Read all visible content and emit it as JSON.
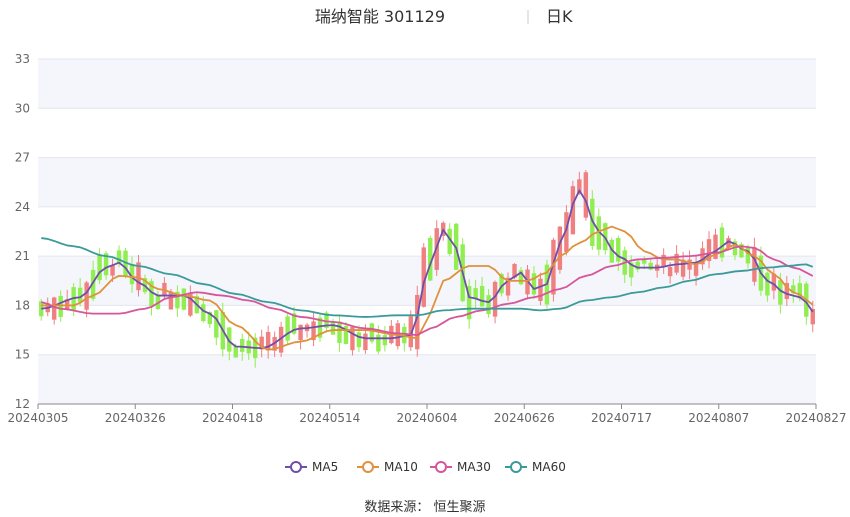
{
  "chart_data": {
    "type": "candlestick",
    "title": "瑞纳智能 301129",
    "subtitle": "日K",
    "source": "数据来源： 恒生聚源",
    "ylim": [
      12,
      33
    ],
    "yticks": [
      12,
      15,
      18,
      21,
      24,
      27,
      30,
      33
    ],
    "xticks": [
      "20240305",
      "20240326",
      "20240418",
      "20240514",
      "20240604",
      "20240626",
      "20240717",
      "20240807",
      "20240827"
    ],
    "colors": {
      "up": "#f08080",
      "down": "#90ee50",
      "MA5": "#6f4fa8",
      "MA10": "#e0913c",
      "MA30": "#d6559b",
      "MA60": "#3b9a9a"
    },
    "legend": [
      "MA5",
      "MA10",
      "MA30",
      "MA60"
    ],
    "n": 120,
    "ma_keypoints": {
      "MA5": [
        [
          0,
          17.8
        ],
        [
          6,
          18.5
        ],
        [
          10,
          20.3
        ],
        [
          12,
          20.6
        ],
        [
          15,
          19.4
        ],
        [
          18,
          18.6
        ],
        [
          22,
          18.6
        ],
        [
          26,
          17.5
        ],
        [
          30,
          15.5
        ],
        [
          34,
          15.4
        ],
        [
          40,
          16.6
        ],
        [
          45,
          16.8
        ],
        [
          50,
          16.0
        ],
        [
          54,
          16.0
        ],
        [
          57,
          16.2
        ],
        [
          60,
          20.5
        ],
        [
          62,
          22.6
        ],
        [
          64,
          21.5
        ],
        [
          66,
          18.5
        ],
        [
          69,
          18.2
        ],
        [
          72,
          19.5
        ],
        [
          74,
          20.0
        ],
        [
          76,
          19.0
        ],
        [
          78,
          19.3
        ],
        [
          80,
          21.8
        ],
        [
          83,
          25.0
        ],
        [
          86,
          22.5
        ],
        [
          89,
          21.0
        ],
        [
          92,
          20.3
        ],
        [
          95,
          20.3
        ],
        [
          98,
          20.5
        ],
        [
          101,
          20.6
        ],
        [
          104,
          21.3
        ],
        [
          106,
          21.9
        ],
        [
          109,
          21.3
        ],
        [
          112,
          19.5
        ],
        [
          115,
          18.7
        ],
        [
          117,
          18.5
        ],
        [
          120,
          17.3
        ]
      ],
      "MA10": [
        [
          0,
          18.0
        ],
        [
          5,
          18.0
        ],
        [
          8,
          18.6
        ],
        [
          12,
          19.8
        ],
        [
          15,
          19.7
        ],
        [
          18,
          19.0
        ],
        [
          22,
          18.6
        ],
        [
          26,
          18.3
        ],
        [
          30,
          16.8
        ],
        [
          35,
          15.3
        ],
        [
          40,
          15.8
        ],
        [
          45,
          16.5
        ],
        [
          50,
          16.5
        ],
        [
          55,
          16.2
        ],
        [
          58,
          16.0
        ],
        [
          60,
          17.5
        ],
        [
          62,
          19.5
        ],
        [
          66,
          20.4
        ],
        [
          69,
          20.4
        ],
        [
          72,
          19.5
        ],
        [
          75,
          19.5
        ],
        [
          78,
          20.0
        ],
        [
          80,
          21.0
        ],
        [
          83,
          21.8
        ],
        [
          86,
          22.5
        ],
        [
          88,
          22.8
        ],
        [
          90,
          22.5
        ],
        [
          93,
          21.3
        ],
        [
          96,
          20.8
        ],
        [
          98,
          20.8
        ],
        [
          101,
          20.5
        ],
        [
          104,
          21.1
        ],
        [
          107,
          21.7
        ],
        [
          110,
          21.0
        ],
        [
          113,
          19.9
        ],
        [
          116,
          18.8
        ],
        [
          120,
          17.9
        ]
      ],
      "MA30": [
        [
          0,
          18.2
        ],
        [
          3,
          17.8
        ],
        [
          8,
          17.5
        ],
        [
          12,
          17.5
        ],
        [
          16,
          17.8
        ],
        [
          20,
          18.5
        ],
        [
          24,
          18.8
        ],
        [
          28,
          18.6
        ],
        [
          32,
          18.3
        ],
        [
          36,
          17.8
        ],
        [
          40,
          17.3
        ],
        [
          45,
          17.0
        ],
        [
          50,
          16.6
        ],
        [
          55,
          16.3
        ],
        [
          58,
          16.2
        ],
        [
          60,
          16.6
        ],
        [
          64,
          17.3
        ],
        [
          68,
          17.7
        ],
        [
          72,
          18.1
        ],
        [
          76,
          18.5
        ],
        [
          80,
          19.0
        ],
        [
          84,
          19.8
        ],
        [
          88,
          20.4
        ],
        [
          92,
          20.8
        ],
        [
          96,
          20.9
        ],
        [
          100,
          21.0
        ],
        [
          104,
          21.2
        ],
        [
          108,
          21.6
        ],
        [
          110,
          21.5
        ],
        [
          113,
          20.8
        ],
        [
          116,
          20.3
        ],
        [
          120,
          19.7
        ]
      ],
      "MA60": [
        [
          0,
          22.1
        ],
        [
          5,
          21.6
        ],
        [
          10,
          21.0
        ],
        [
          15,
          20.4
        ],
        [
          20,
          19.9
        ],
        [
          25,
          19.3
        ],
        [
          30,
          18.7
        ],
        [
          35,
          18.2
        ],
        [
          40,
          17.7
        ],
        [
          45,
          17.4
        ],
        [
          50,
          17.3
        ],
        [
          55,
          17.4
        ],
        [
          58,
          17.4
        ],
        [
          62,
          17.7
        ],
        [
          66,
          17.8
        ],
        [
          70,
          17.8
        ],
        [
          74,
          17.8
        ],
        [
          77,
          17.7
        ],
        [
          80,
          17.8
        ],
        [
          84,
          18.3
        ],
        [
          88,
          18.5
        ],
        [
          92,
          18.8
        ],
        [
          96,
          19.1
        ],
        [
          100,
          19.5
        ],
        [
          104,
          19.9
        ],
        [
          108,
          20.1
        ],
        [
          112,
          20.3
        ],
        [
          115,
          20.4
        ],
        [
          118,
          20.5
        ],
        [
          120,
          20.2
        ]
      ]
    }
  }
}
